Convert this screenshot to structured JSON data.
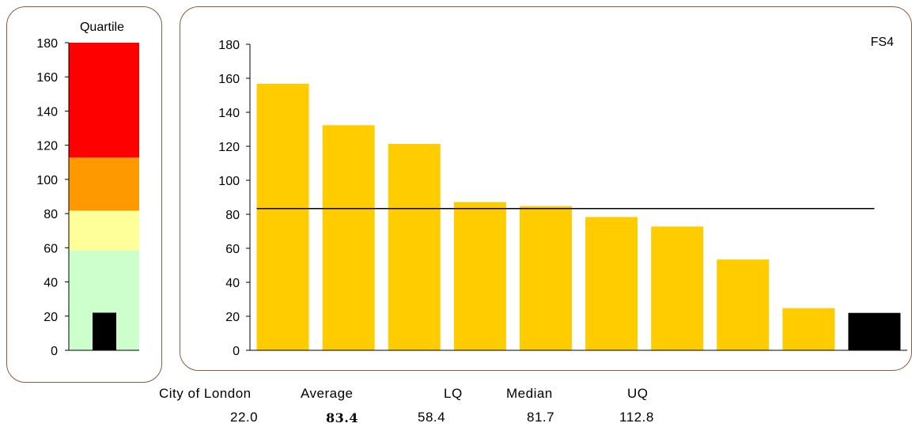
{
  "chart_data": [
    {
      "type": "bar",
      "title": "Quartile",
      "ylim": [
        0,
        180
      ],
      "yticks": [
        0,
        20,
        40,
        60,
        80,
        100,
        120,
        140,
        160,
        180
      ],
      "bands": [
        {
          "from": 0,
          "to": 58.4,
          "color": "#ccffcc"
        },
        {
          "from": 58.4,
          "to": 81.7,
          "color": "#ffff99"
        },
        {
          "from": 81.7,
          "to": 112.8,
          "color": "#ff9900"
        },
        {
          "from": 112.8,
          "to": 180,
          "color": "#ff0000"
        }
      ],
      "marker_value": 22.0,
      "marker_color": "#000000"
    },
    {
      "type": "bar",
      "title": "FS4",
      "ylim": [
        0,
        180
      ],
      "yticks": [
        0,
        20,
        40,
        60,
        80,
        100,
        120,
        140,
        160,
        180
      ],
      "values": [
        156.8,
        132.4,
        121.4,
        87.2,
        84.8,
        78.4,
        72.8,
        53.4,
        24.8,
        22.0
      ],
      "bar_colors": [
        "#ffcc00",
        "#ffcc00",
        "#ffcc00",
        "#ffcc00",
        "#ffcc00",
        "#ffcc00",
        "#ffcc00",
        "#ffcc00",
        "#ffcc00",
        "#000000"
      ],
      "average_line": 83.4
    }
  ],
  "summary": {
    "headers": [
      "City of London",
      "Average",
      "LQ",
      "Median",
      "UQ"
    ],
    "values": [
      "22.0",
      "83.4",
      "58.4",
      "81.7",
      "112.8"
    ]
  }
}
